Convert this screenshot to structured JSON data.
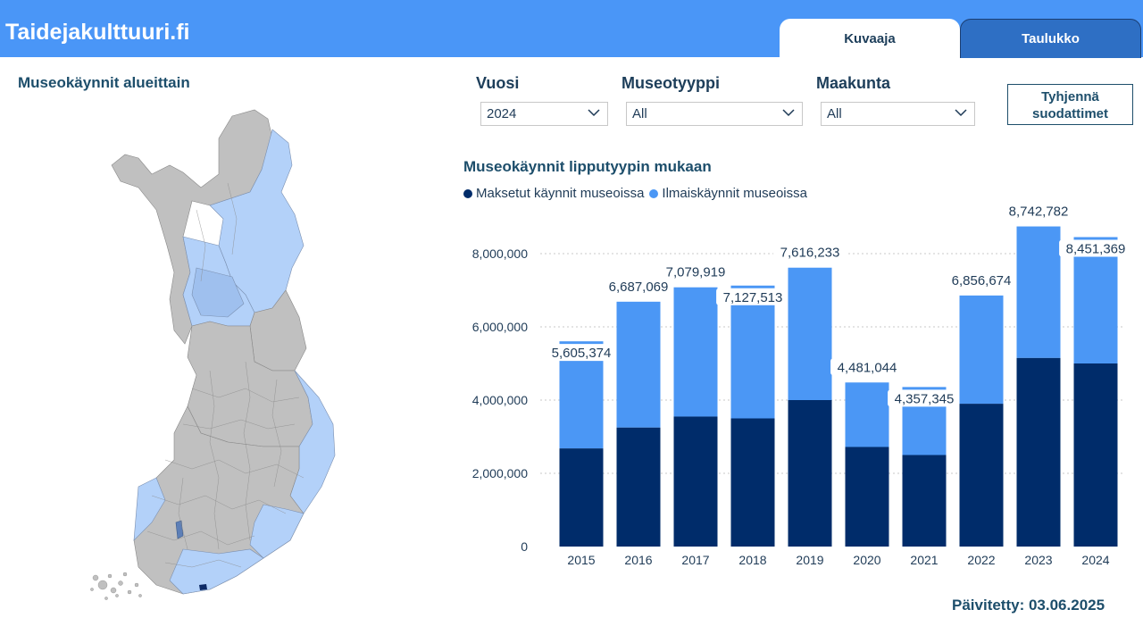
{
  "header": {
    "brand": "Taidejakulttuuri.fi",
    "tabs": [
      {
        "label": "Kuvaaja",
        "active": true
      },
      {
        "label": "Taulukko",
        "active": false
      }
    ]
  },
  "map": {
    "title": "Museokäynnit alueittain"
  },
  "filters": {
    "year": {
      "label": "Vuosi",
      "value": "2024"
    },
    "type": {
      "label": "Museotyyppi",
      "value": "All"
    },
    "region": {
      "label": "Maakunta",
      "value": "All"
    },
    "clear_label_line1": "Tyhjennä",
    "clear_label_line2": "suodattimet"
  },
  "chart": {
    "title": "Museokäynnit lipputyypin mukaan"
  },
  "footer": {
    "updated": "Päivitetty: 03.06.2025"
  },
  "colors": {
    "paid": "#002c6a",
    "free": "#4b97f5",
    "header": "#4a96f7",
    "map_gray": "#c0c0c0",
    "map_light": "#b3d1f9"
  },
  "chart_data": {
    "type": "bar",
    "stacked": true,
    "categories": [
      "2015",
      "2016",
      "2017",
      "2018",
      "2019",
      "2020",
      "2021",
      "2022",
      "2023",
      "2024"
    ],
    "series": [
      {
        "name": "Maksetut käynnit museoissa",
        "color": "#002c6a",
        "values": [
          2680000,
          3250000,
          3550000,
          3500000,
          4000000,
          2720000,
          2500000,
          3900000,
          5150000,
          5000000
        ]
      },
      {
        "name": "Ilmaiskäynnit museoissa",
        "color": "#4b97f5",
        "values": [
          2925374,
          3437069,
          3529919,
          3627513,
          3616233,
          1761044,
          1857345,
          2956674,
          3592782,
          3451369
        ]
      }
    ],
    "totals": [
      5605374,
      6687069,
      7079919,
      7127513,
      7616233,
      4481044,
      4357345,
      6856674,
      8742782,
      8451369
    ],
    "total_labels": [
      "5,605,374",
      "6,687,069",
      "7,079,919",
      "7,127,513",
      "7,616,233",
      "4,481,044",
      "4,357,345",
      "6,856,674",
      "8,742,782",
      "8,451,369"
    ],
    "y_ticks": [
      0,
      2000000,
      4000000,
      6000000,
      8000000
    ],
    "y_tick_labels": [
      "0",
      "2,000,000",
      "4,000,000",
      "6,000,000",
      "8,000,000"
    ],
    "ylim": [
      0,
      9000000
    ],
    "grid": true,
    "legend_position": "top-left"
  }
}
